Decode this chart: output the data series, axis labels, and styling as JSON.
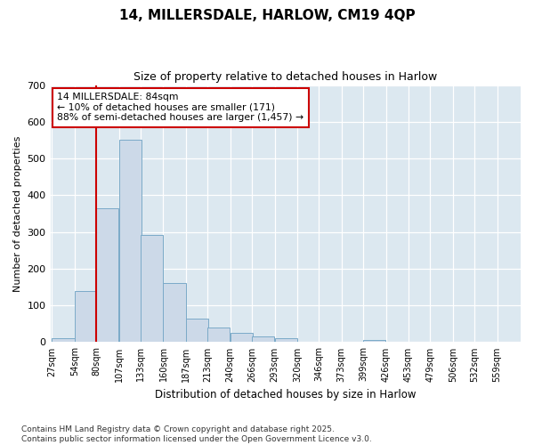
{
  "title": "14, MILLERSDALE, HARLOW, CM19 4QP",
  "subtitle": "Size of property relative to detached houses in Harlow",
  "xlabel": "Distribution of detached houses by size in Harlow",
  "ylabel": "Number of detached properties",
  "annotation_line1": "14 MILLERSDALE: 84sqm",
  "annotation_line2": "← 10% of detached houses are smaller (171)",
  "annotation_line3": "88% of semi-detached houses are larger (1,457) →",
  "bin_labels": [
    "27sqm",
    "54sqm",
    "80sqm",
    "107sqm",
    "133sqm",
    "160sqm",
    "187sqm",
    "213sqm",
    "240sqm",
    "266sqm",
    "293sqm",
    "320sqm",
    "346sqm",
    "373sqm",
    "399sqm",
    "426sqm",
    "453sqm",
    "479sqm",
    "506sqm",
    "532sqm",
    "559sqm"
  ],
  "bin_edges": [
    27,
    54,
    80,
    107,
    133,
    160,
    187,
    213,
    240,
    266,
    293,
    320,
    346,
    373,
    399,
    426,
    453,
    479,
    506,
    532,
    559
  ],
  "bar_heights": [
    10,
    140,
    365,
    550,
    293,
    160,
    65,
    40,
    25,
    15,
    10,
    0,
    0,
    0,
    5,
    0,
    0,
    0,
    0,
    0
  ],
  "bar_color": "#ccd9e8",
  "bar_edge_color": "#7baac8",
  "vline_color": "#cc0000",
  "vline_x": 80,
  "annotation_box_facecolor": "#ffffff",
  "annotation_box_edgecolor": "#cc0000",
  "plot_background": "#dce8f0",
  "figure_background": "#ffffff",
  "grid_color": "#ffffff",
  "ylim": [
    0,
    700
  ],
  "yticks": [
    0,
    100,
    200,
    300,
    400,
    500,
    600,
    700
  ],
  "footnote1": "Contains HM Land Registry data © Crown copyright and database right 2025.",
  "footnote2": "Contains public sector information licensed under the Open Government Licence v3.0."
}
